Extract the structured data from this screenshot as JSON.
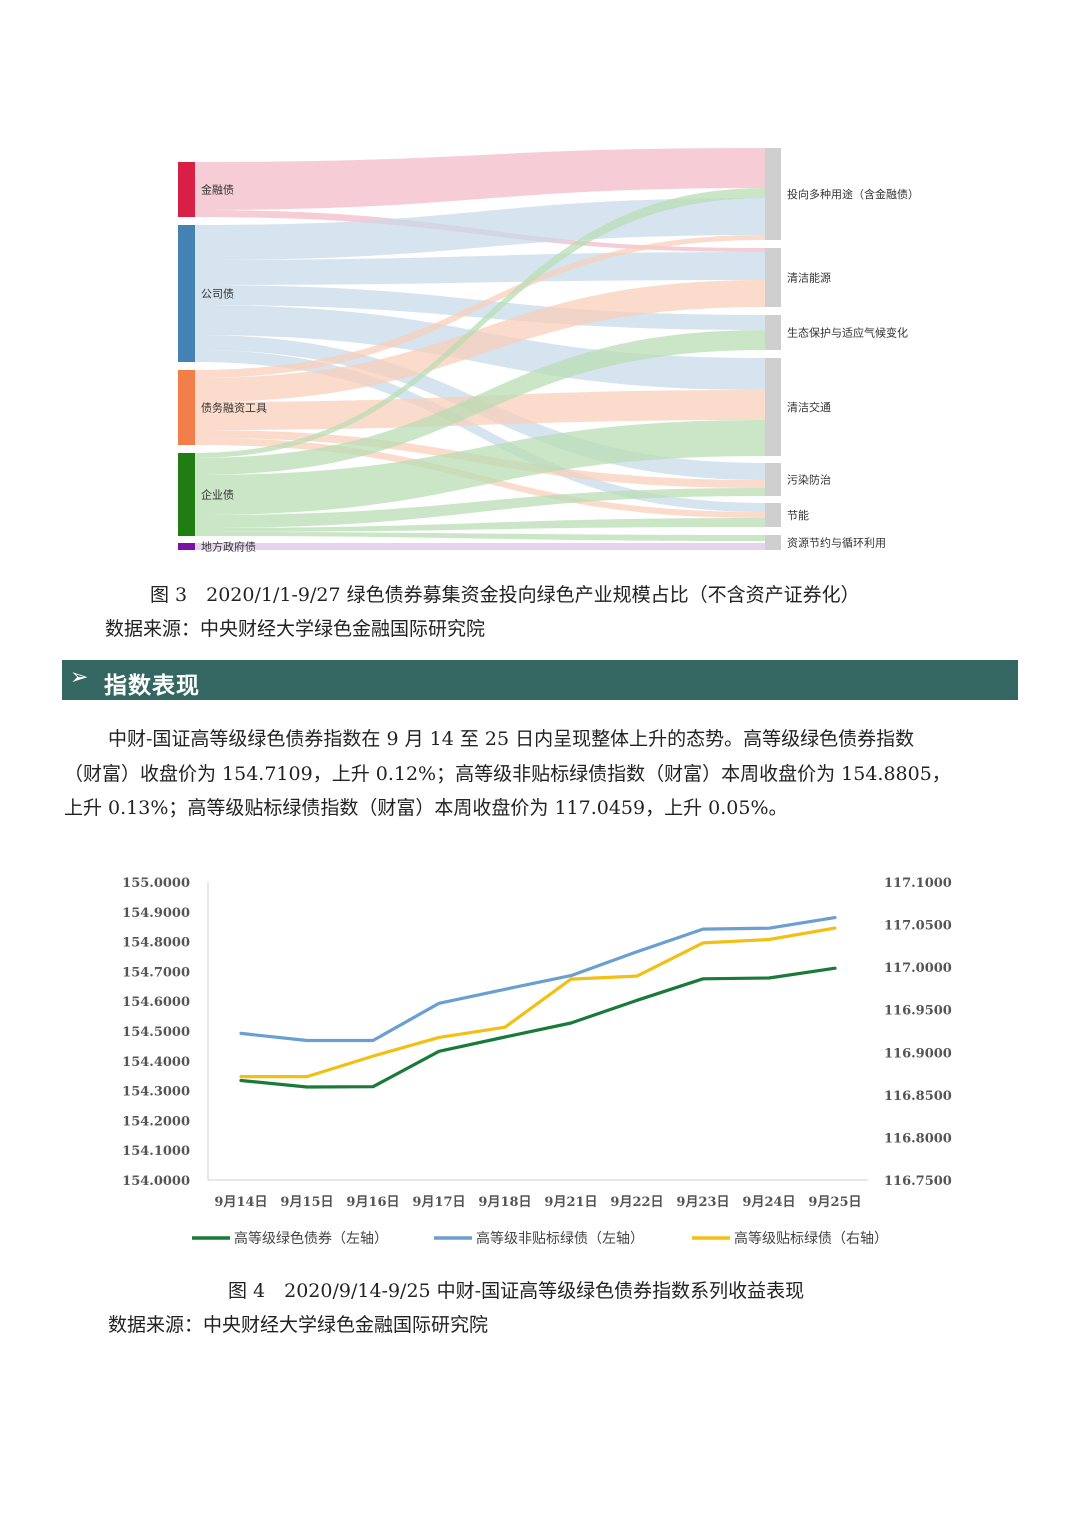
{
  "sankey": {
    "sources": [
      {
        "label": "金融债",
        "color": "#d81f45",
        "flow": "#f2b9c7"
      },
      {
        "label": "公司债",
        "color": "#4482b4",
        "flow": "#c6dae9"
      },
      {
        "label": "债务融资工具",
        "color": "#f27f4a",
        "flow": "#f9cdb7"
      },
      {
        "label": "企业债",
        "color": "#1f7d12",
        "flow": "#b7dcb1"
      },
      {
        "label": "地方政府债",
        "color": "#7a12a6",
        "flow": "#dcc3e8"
      }
    ],
    "targets": [
      {
        "label": "投向多种用途（含金融债）"
      },
      {
        "label": "清洁能源"
      },
      {
        "label": "生态保护与适应气候变化"
      },
      {
        "label": "清洁交通"
      },
      {
        "label": "污染防治"
      },
      {
        "label": "节能"
      },
      {
        "label": "资源节约与循环利用"
      }
    ]
  },
  "caption1": "图 3　2020/1/1-9/27 绿色债券募集资金投向绿色产业规模占比（不含资产证券化）",
  "source1": "数据来源：中央财经大学绿色金融国际研究院",
  "section": {
    "arrow": "➢",
    "title": "指数表现"
  },
  "paragraph": [
    "中财-国证高等级绿色债券指数在 9 月 14 至 25 日内呈现整体上升的态势。高等级绿色债券指数",
    "（财富）收盘价为 154.7109，上升 0.12%；高等级非贴标绿债指数（财富）本周收盘价为 154.8805，",
    "上升 0.13%；高等级贴标绿债指数（财富）本周收盘价为 117.0459，上升 0.05%。"
  ],
  "chart_data": {
    "type": "line",
    "categories": [
      "9月14日",
      "9月15日",
      "9月16日",
      "9月17日",
      "9月18日",
      "9月21日",
      "9月22日",
      "9月23日",
      "9月24日",
      "9月25日"
    ],
    "left_ylim": [
      154.0,
      155.0
    ],
    "right_ylim": [
      116.75,
      117.1
    ],
    "left_ticks": [
      "155.0000",
      "154.9000",
      "154.8000",
      "154.7000",
      "154.6000",
      "154.5000",
      "154.4000",
      "154.3000",
      "154.2000",
      "154.1000",
      "154.0000"
    ],
    "right_ticks": [
      "117.1000",
      "117.0500",
      "117.0000",
      "116.9500",
      "116.9000",
      "116.8500",
      "116.8000",
      "116.7500"
    ],
    "grid": false,
    "legend_position": "bottom",
    "series": [
      {
        "name": "高等级绿色债券（左轴）",
        "axis": "left",
        "color": "#1a7a3a",
        "values": [
          154.334,
          154.312,
          154.313,
          154.432,
          154.48,
          154.527,
          154.603,
          154.675,
          154.678,
          154.7109
        ]
      },
      {
        "name": "高等级非贴标绿债（左轴）",
        "axis": "left",
        "color": "#6a9fd0",
        "values": [
          154.492,
          154.468,
          154.468,
          154.593,
          154.64,
          154.686,
          154.766,
          154.842,
          154.845,
          154.8805
        ]
      },
      {
        "name": "高等级贴标绿债（右轴）",
        "axis": "right",
        "color": "#f2c014",
        "values": [
          116.8715,
          116.8715,
          116.8955,
          116.9175,
          116.9295,
          116.986,
          116.9895,
          117.0285,
          117.0325,
          117.0459
        ]
      }
    ]
  },
  "caption2": "图 4　2020/9/14-9/25 中财-国证高等级绿色债券指数系列收益表现",
  "source2": "数据来源：中央财经大学绿色金融国际研究院"
}
